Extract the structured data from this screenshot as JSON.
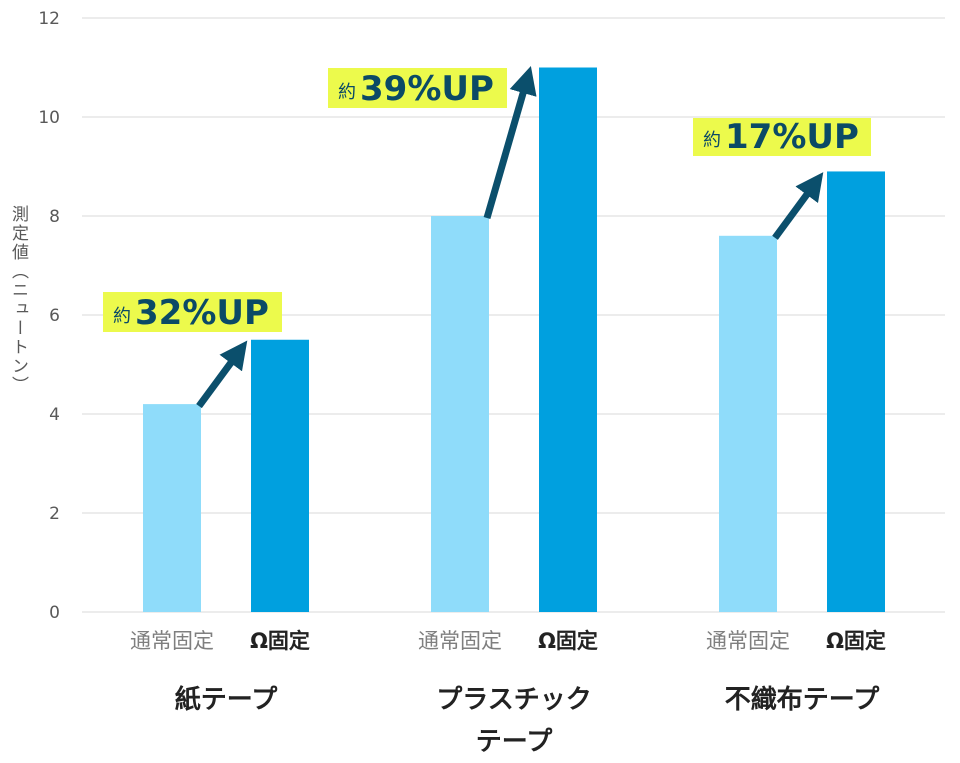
{
  "chart_data": {
    "type": "bar",
    "ylabel": "測定値（ニュートン）",
    "ylim": [
      0,
      12
    ],
    "yticks": [
      0,
      2,
      4,
      6,
      8,
      10,
      12
    ],
    "grid": true,
    "groups": [
      {
        "label_lines": [
          "紙テープ"
        ],
        "bars": [
          {
            "label": "通常固定",
            "value": 4.2
          },
          {
            "label": "Ω固定",
            "value": 5.5
          }
        ],
        "annotation": {
          "prefix": "約",
          "text": "32%UP"
        }
      },
      {
        "label_lines": [
          "プラスチック",
          "テープ"
        ],
        "bars": [
          {
            "label": "通常固定",
            "value": 8.0
          },
          {
            "label": "Ω固定",
            "value": 11.0
          }
        ],
        "annotation": {
          "prefix": "約",
          "text": "39%UP"
        }
      },
      {
        "label_lines": [
          "不織布テープ"
        ],
        "bars": [
          {
            "label": "通常固定",
            "value": 7.6
          },
          {
            "label": "Ω固定",
            "value": 8.9
          }
        ],
        "annotation": {
          "prefix": "約",
          "text": "17%UP"
        }
      }
    ],
    "colors": {
      "normal": "#8fdcfa",
      "omega": "#00a0df",
      "highlight": "#ecfa4c",
      "arrow": "#0b4f6c",
      "grid": "#d9d9d9"
    }
  }
}
